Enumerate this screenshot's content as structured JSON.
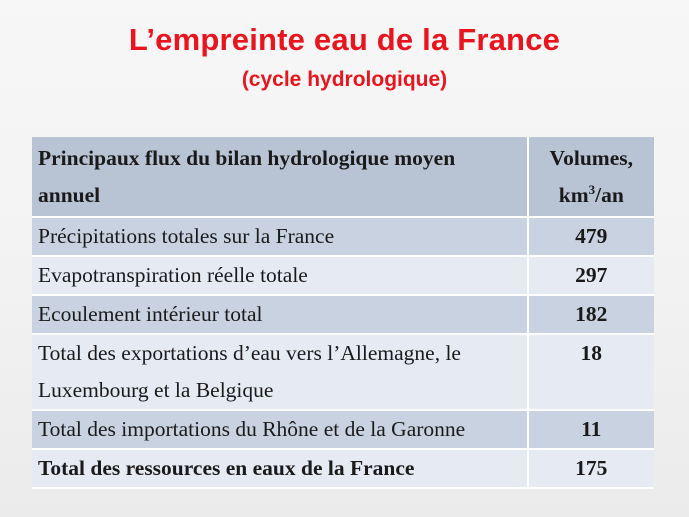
{
  "title": "L’empreinte eau de la France",
  "subtitle": "(cycle hydrologique)",
  "table": {
    "header": {
      "label": "Principaux flux du bilan hydrologique moyen annuel",
      "volumes_prefix": "Volumes,",
      "volumes_unit_base": "km",
      "volumes_unit_exp": "3",
      "volumes_unit_suffix": "/an"
    },
    "rows": [
      {
        "label": "Précipitations totales sur la France",
        "value": "479"
      },
      {
        "label": "Evapotranspiration réelle totale",
        "value": "297"
      },
      {
        "label": "Ecoulement intérieur total",
        "value": "182"
      },
      {
        "label": "Total des exportations d’eau vers l’Allemagne, le Luxembourg et la  Belgique",
        "value": "18"
      },
      {
        "label": "Total des importations du Rhône et de la Garonne",
        "value": "11"
      },
      {
        "label": "Total des ressources en eaux de la France",
        "value": "175"
      }
    ]
  },
  "colors": {
    "title": "#e8141e",
    "header_bg": "#b8c3d4",
    "band_dark": "#c9d2e0",
    "band_light": "#e6eaf2"
  }
}
